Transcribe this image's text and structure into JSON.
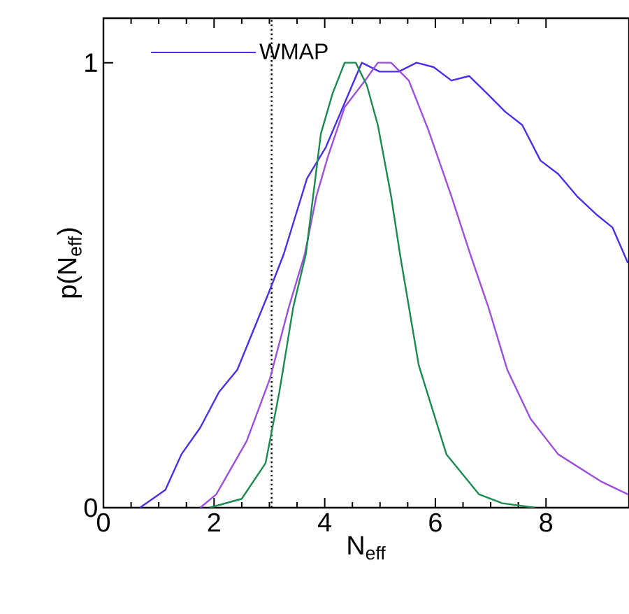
{
  "chart_data": {
    "type": "line",
    "xlabel": "N$_{eff}$",
    "ylabel": "p(N$_{eff}$)",
    "xlim": [
      0,
      9.5
    ],
    "ylim": [
      0,
      1.1
    ],
    "xticks": [
      0,
      2,
      4,
      6,
      8
    ],
    "yticks": [
      0,
      1
    ],
    "legend": "top left",
    "grid": false,
    "line_style": "solid",
    "marker": "none",
    "ref_lines": [
      {
        "axis": "x",
        "value": 3.04,
        "color": "#000000",
        "line_style": "dotted"
      }
    ],
    "series": [
      {
        "name": "WMAP",
        "color": "#4a2ee8",
        "x": [
          0.66,
          1.12,
          1.41,
          1.75,
          2.09,
          2.42,
          3.01,
          3.26,
          3.68,
          4.02,
          4.67,
          4.99,
          5.34,
          5.66,
          5.97,
          6.29,
          6.61,
          6.94,
          7.26,
          7.57,
          7.9,
          8.22,
          8.56,
          8.9,
          9.2,
          9.48
        ],
        "values": [
          0,
          0.04,
          0.12,
          0.18,
          0.26,
          0.31,
          0.49,
          0.57,
          0.74,
          0.81,
          1.0,
          0.98,
          0.98,
          1.0,
          0.99,
          0.96,
          0.97,
          0.93,
          0.89,
          0.86,
          0.78,
          0.75,
          0.7,
          0.66,
          0.63,
          0.55
        ]
      },
      {
        "color": "#9b4fdc",
        "x": [
          1.75,
          2.04,
          2.59,
          3.01,
          3.35,
          3.64,
          3.85,
          4.06,
          4.36,
          4.73,
          4.96,
          5.2,
          5.52,
          5.87,
          6.29,
          6.63,
          6.96,
          7.3,
          7.72,
          8.22,
          8.98,
          9.48
        ],
        "values": [
          0,
          0.03,
          0.15,
          0.29,
          0.45,
          0.57,
          0.7,
          0.79,
          0.9,
          0.96,
          1.0,
          1.0,
          0.96,
          0.85,
          0.7,
          0.57,
          0.45,
          0.31,
          0.2,
          0.12,
          0.06,
          0.03
        ]
      },
      {
        "color": "#1a8a50",
        "x": [
          1.92,
          2.5,
          2.93,
          3.18,
          3.43,
          3.66,
          3.93,
          4.14,
          4.36,
          4.56,
          4.76,
          4.96,
          5.2,
          5.36,
          5.7,
          6.2,
          6.79,
          7.21,
          7.8
        ],
        "values": [
          0,
          0.02,
          0.1,
          0.26,
          0.45,
          0.57,
          0.84,
          0.93,
          1.0,
          1.0,
          0.95,
          0.86,
          0.7,
          0.57,
          0.32,
          0.12,
          0.03,
          0.01,
          0
        ]
      }
    ]
  }
}
